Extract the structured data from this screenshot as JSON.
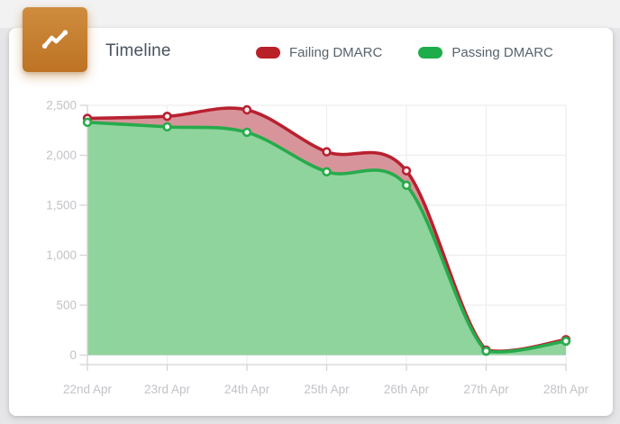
{
  "header": {
    "title": "Timeline",
    "icon": "trending-line-icon",
    "icon_color_top": "#cf8c3e",
    "icon_color_bottom": "#bd7323"
  },
  "legend": {
    "items": [
      {
        "label": "Failing DMARC",
        "color": "#b92129"
      },
      {
        "label": "Passing DMARC",
        "color": "#1ead4b"
      }
    ]
  },
  "chart_data": {
    "type": "area",
    "title": "Timeline",
    "categories": [
      "22nd Apr",
      "23rd Apr",
      "24th Apr",
      "25th Apr",
      "26th Apr",
      "27th Apr",
      "28th Apr"
    ],
    "series": [
      {
        "name": "Failing DMARC",
        "line_color": "#b92130",
        "fill_color": "#d8949b",
        "values": [
          2370,
          2390,
          2455,
          2035,
          1845,
          50,
          155
        ]
      },
      {
        "name": "Passing DMARC",
        "line_color": "#27ab4c",
        "fill_color": "#8fd39d",
        "values": [
          2330,
          2285,
          2230,
          1835,
          1700,
          40,
          140
        ]
      }
    ],
    "xlabel": "",
    "ylabel": "",
    "ylim": [
      0,
      2500
    ],
    "ytick_step": 500,
    "ytick_labels": [
      "0",
      "500",
      "1,000",
      "1,500",
      "2,000",
      "2,500"
    ],
    "grid": true,
    "legend_position": "top",
    "axis_label_color": "#c3c2c7",
    "grid_color": "#ededef",
    "axis_line_color": "#d4d4d8"
  }
}
